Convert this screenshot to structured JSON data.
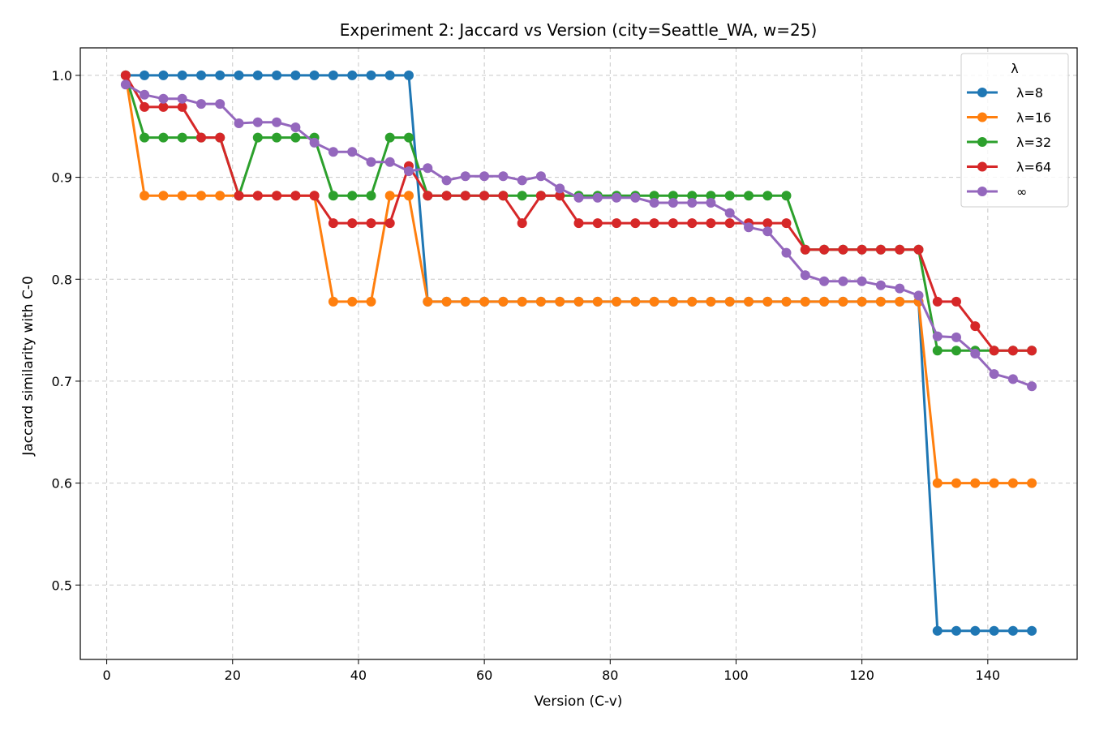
{
  "chart_data": {
    "type": "line",
    "title": "Experiment 2: Jaccard vs Version  (city=Seattle_WA, w=25)",
    "xlabel": "Version (C-v)",
    "ylabel": "Jaccard similarity with C-0",
    "xlim": [
      -4.2,
      154.2
    ],
    "ylim": [
      0.427,
      1.027
    ],
    "xticks": [
      0,
      20,
      40,
      60,
      80,
      100,
      120,
      140
    ],
    "yticks": [
      0.5,
      0.6,
      0.7,
      0.8,
      0.9,
      1.0
    ],
    "ytick_labels": [
      "0.5",
      "0.6",
      "0.7",
      "0.8",
      "0.9",
      "1.0"
    ],
    "grid": true,
    "legend": {
      "title": "λ",
      "position": "top-right"
    },
    "x": [
      3,
      6,
      9,
      12,
      15,
      18,
      21,
      24,
      27,
      30,
      33,
      36,
      39,
      42,
      45,
      48,
      51,
      54,
      57,
      60,
      63,
      66,
      69,
      72,
      75,
      78,
      81,
      84,
      87,
      90,
      93,
      96,
      99,
      102,
      105,
      108,
      111,
      114,
      117,
      120,
      123,
      126,
      129,
      132,
      135,
      138,
      141,
      144,
      147
    ],
    "series": [
      {
        "name": "λ=8",
        "color": "#1f77b4",
        "values": [
          1.0,
          1.0,
          1.0,
          1.0,
          1.0,
          1.0,
          1.0,
          1.0,
          1.0,
          1.0,
          1.0,
          1.0,
          1.0,
          1.0,
          1.0,
          1.0,
          0.778,
          0.778,
          0.778,
          0.778,
          0.778,
          0.778,
          0.778,
          0.778,
          0.778,
          0.778,
          0.778,
          0.778,
          0.778,
          0.778,
          0.778,
          0.778,
          0.778,
          0.778,
          0.778,
          0.778,
          0.778,
          0.778,
          0.778,
          0.778,
          0.778,
          0.778,
          0.778,
          0.455,
          0.455,
          0.455,
          0.455,
          0.455,
          0.455
        ]
      },
      {
        "name": "λ=16",
        "color": "#ff7f0e",
        "values": [
          1.0,
          0.882,
          0.882,
          0.882,
          0.882,
          0.882,
          0.882,
          0.882,
          0.882,
          0.882,
          0.882,
          0.778,
          0.778,
          0.778,
          0.882,
          0.882,
          0.778,
          0.778,
          0.778,
          0.778,
          0.778,
          0.778,
          0.778,
          0.778,
          0.778,
          0.778,
          0.778,
          0.778,
          0.778,
          0.778,
          0.778,
          0.778,
          0.778,
          0.778,
          0.778,
          0.778,
          0.778,
          0.778,
          0.778,
          0.778,
          0.778,
          0.778,
          0.778,
          0.6,
          0.6,
          0.6,
          0.6,
          0.6,
          0.6
        ]
      },
      {
        "name": "λ=32",
        "color": "#2ca02c",
        "values": [
          1.0,
          0.939,
          0.939,
          0.939,
          0.939,
          0.939,
          0.882,
          0.939,
          0.939,
          0.939,
          0.939,
          0.882,
          0.882,
          0.882,
          0.939,
          0.939,
          0.882,
          0.882,
          0.882,
          0.882,
          0.882,
          0.882,
          0.882,
          0.882,
          0.882,
          0.882,
          0.882,
          0.882,
          0.882,
          0.882,
          0.882,
          0.882,
          0.882,
          0.882,
          0.882,
          0.882,
          0.829,
          0.829,
          0.829,
          0.829,
          0.829,
          0.829,
          0.829,
          0.73,
          0.73,
          0.73,
          0.73,
          0.73,
          0.73
        ]
      },
      {
        "name": "λ=64",
        "color": "#d62728",
        "values": [
          1.0,
          0.969,
          0.969,
          0.969,
          0.939,
          0.939,
          0.882,
          0.882,
          0.882,
          0.882,
          0.882,
          0.855,
          0.855,
          0.855,
          0.855,
          0.911,
          0.882,
          0.882,
          0.882,
          0.882,
          0.882,
          0.855,
          0.882,
          0.882,
          0.855,
          0.855,
          0.855,
          0.855,
          0.855,
          0.855,
          0.855,
          0.855,
          0.855,
          0.855,
          0.855,
          0.855,
          0.829,
          0.829,
          0.829,
          0.829,
          0.829,
          0.829,
          0.829,
          0.778,
          0.778,
          0.754,
          0.73,
          0.73,
          0.73
        ]
      },
      {
        "name": "∞",
        "color": "#9467bd",
        "values": [
          0.991,
          0.981,
          0.977,
          0.977,
          0.972,
          0.972,
          0.953,
          0.954,
          0.954,
          0.949,
          0.934,
          0.925,
          0.925,
          0.915,
          0.915,
          0.906,
          0.909,
          0.897,
          0.901,
          0.901,
          0.901,
          0.897,
          0.901,
          0.889,
          0.88,
          0.88,
          0.88,
          0.88,
          0.875,
          0.875,
          0.875,
          0.875,
          0.865,
          0.851,
          0.847,
          0.826,
          0.804,
          0.798,
          0.798,
          0.798,
          0.794,
          0.791,
          0.784,
          0.744,
          0.743,
          0.727,
          0.707,
          0.702,
          0.695
        ]
      }
    ]
  }
}
